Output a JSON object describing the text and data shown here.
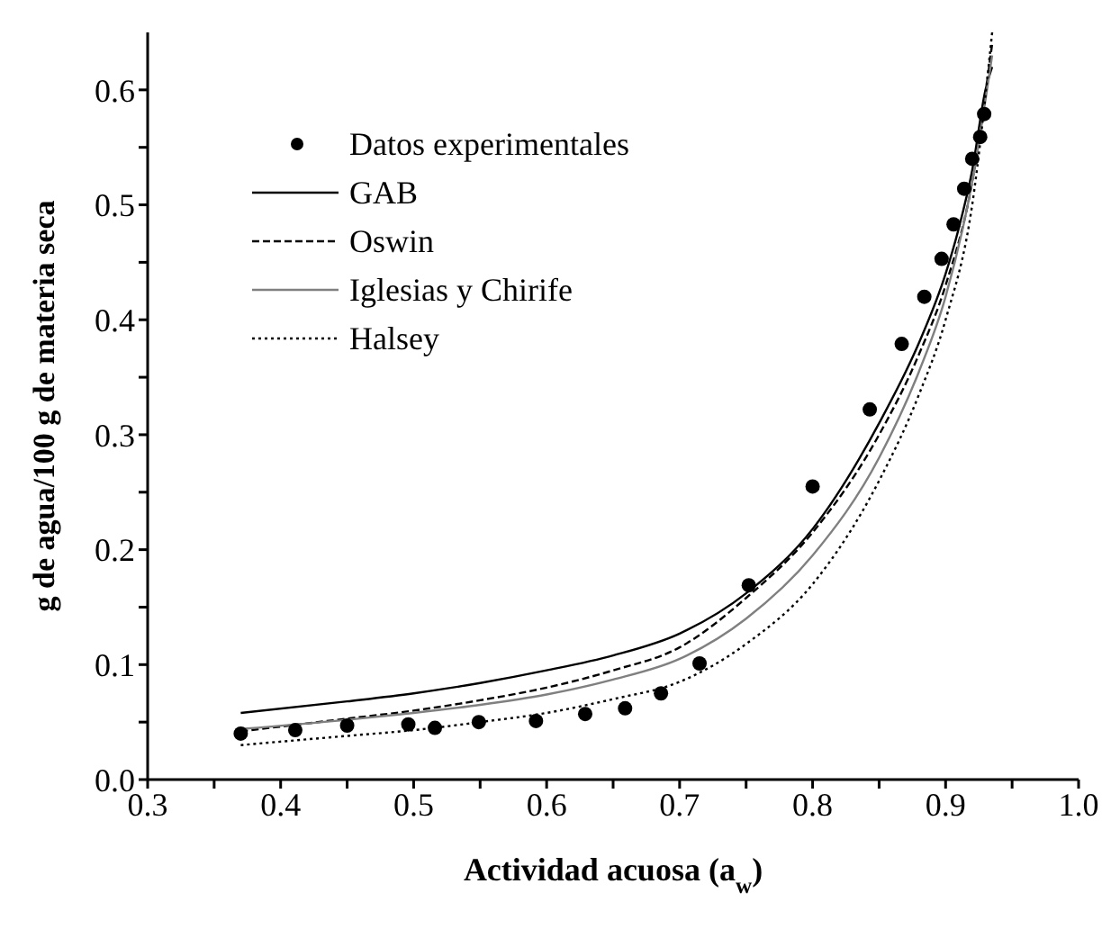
{
  "chart_data": {
    "type": "line",
    "xlabel": "Actividad acuosa (a$_{w}$)",
    "ylabel": "g de agua/100 g de materia seca",
    "xlim": [
      0.3,
      1.0
    ],
    "xticks": [
      0.3,
      {
        "value": 0.35,
        "label": null
      },
      0.4,
      {
        "value": 0.45,
        "label": null
      },
      0.5,
      {
        "value": 0.55,
        "label": null
      },
      0.6,
      {
        "value": 0.65,
        "label": null
      },
      0.7,
      {
        "value": 0.75,
        "label": null
      },
      0.8,
      {
        "value": 0.85,
        "label": null
      },
      0.9,
      {
        "value": 0.95,
        "label": null
      },
      {
        "value": 1.0,
        "label": "1.0"
      }
    ],
    "ylim": [
      0,
      0.65
    ],
    "yticks": [
      {
        "value": 0,
        "label": "0.0"
      },
      {
        "value": 0.05,
        "label": null
      },
      0.1,
      {
        "value": 0.15,
        "label": null
      },
      0.2,
      {
        "value": 0.25,
        "label": null
      },
      0.3,
      {
        "value": 0.35,
        "label": null
      },
      0.4,
      {
        "value": 0.45,
        "label": null
      },
      0.5,
      {
        "value": 0.55,
        "label": null
      },
      0.6
    ],
    "grid": false,
    "legend": "top left",
    "series": [
      {
        "name": "Datos experimentales",
        "type": "scatter",
        "marker": "circle",
        "color": "#000000",
        "x": [
          0.37,
          0.411,
          0.45,
          0.496,
          0.516,
          0.549,
          0.592,
          0.629,
          0.659,
          0.686,
          0.715,
          0.752,
          0.8,
          0.843,
          0.867,
          0.884,
          0.897,
          0.906,
          0.914,
          0.92,
          0.926,
          0.929
        ],
        "values": [
          0.04,
          0.043,
          0.047,
          0.048,
          0.045,
          0.05,
          0.051,
          0.057,
          0.062,
          0.075,
          0.101,
          0.169,
          0.255,
          0.322,
          0.379,
          0.42,
          0.453,
          0.483,
          0.514,
          0.54,
          0.559,
          0.579
        ]
      },
      {
        "name": "GAB",
        "type": "line",
        "line_style": "solid",
        "color": "#000000",
        "x": [
          0.37,
          0.45,
          0.5,
          0.55,
          0.6,
          0.65,
          0.7,
          0.75,
          0.8,
          0.85,
          0.88,
          0.9,
          0.91,
          0.92,
          0.93,
          0.935
        ],
        "values": [
          0.058,
          0.068,
          0.075,
          0.084,
          0.095,
          0.108,
          0.127,
          0.162,
          0.218,
          0.31,
          0.38,
          0.44,
          0.48,
          0.53,
          0.6,
          0.62
        ]
      },
      {
        "name": "Oswin",
        "type": "line",
        "line_style": "dashed",
        "color": "#000000",
        "x": [
          0.37,
          0.45,
          0.5,
          0.55,
          0.6,
          0.65,
          0.7,
          0.75,
          0.8,
          0.85,
          0.88,
          0.9,
          0.92,
          0.935
        ],
        "values": [
          0.042,
          0.053,
          0.06,
          0.069,
          0.08,
          0.095,
          0.115,
          0.158,
          0.215,
          0.3,
          0.37,
          0.43,
          0.52,
          0.64
        ]
      },
      {
        "name": "Iglesias y Chirife",
        "type": "line",
        "line_style": "solid",
        "color": "#808080",
        "x": [
          0.37,
          0.45,
          0.5,
          0.55,
          0.6,
          0.65,
          0.7,
          0.75,
          0.8,
          0.85,
          0.88,
          0.9,
          0.92,
          0.935
        ],
        "values": [
          0.044,
          0.052,
          0.058,
          0.065,
          0.074,
          0.087,
          0.105,
          0.14,
          0.195,
          0.28,
          0.355,
          0.42,
          0.52,
          0.63
        ]
      },
      {
        "name": "Halsey",
        "type": "line",
        "line_style": "dotted",
        "color": "#000000",
        "x": [
          0.37,
          0.45,
          0.5,
          0.55,
          0.6,
          0.65,
          0.7,
          0.75,
          0.8,
          0.85,
          0.88,
          0.9,
          0.92,
          0.935
        ],
        "values": [
          0.03,
          0.038,
          0.043,
          0.05,
          0.058,
          0.07,
          0.085,
          0.118,
          0.17,
          0.26,
          0.335,
          0.4,
          0.5,
          0.65
        ]
      }
    ]
  }
}
